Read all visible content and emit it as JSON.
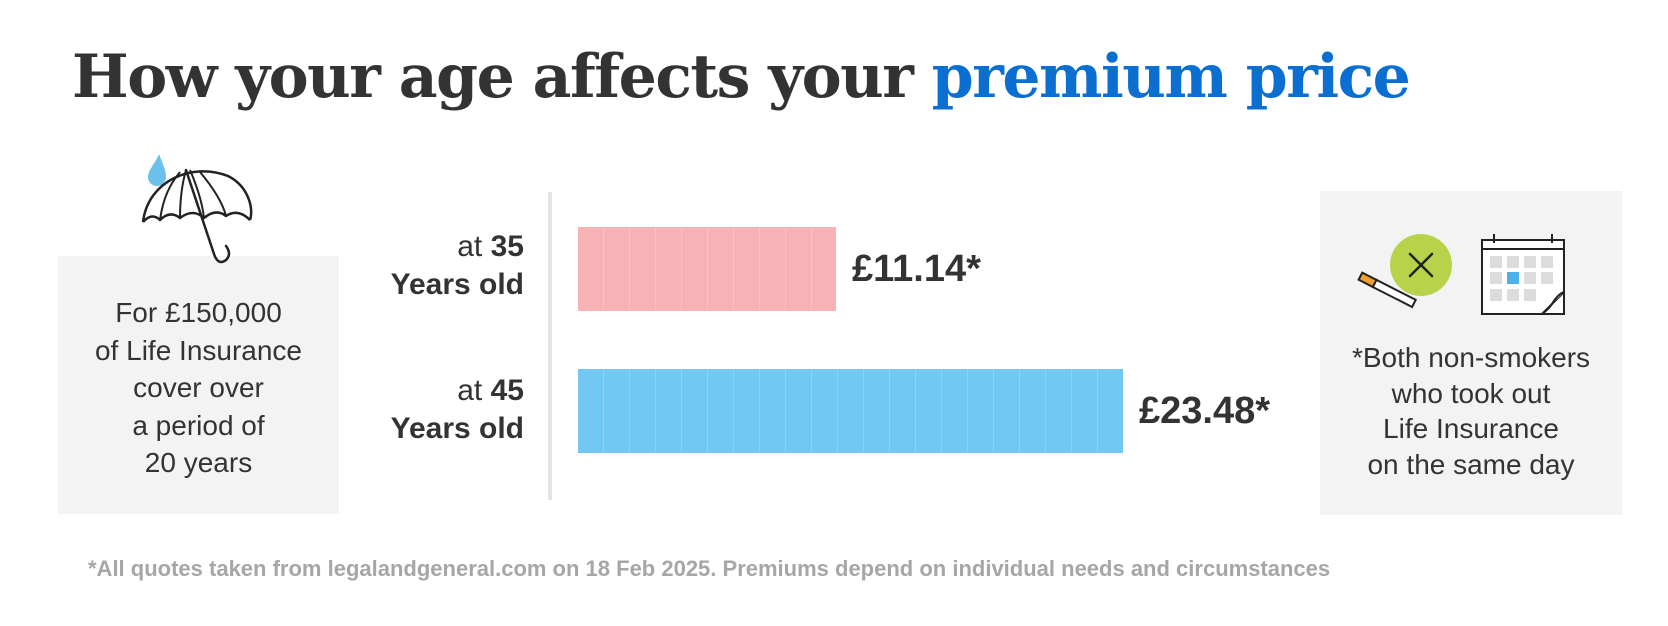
{
  "title": {
    "part1": "How your age affects your",
    "part2": "premium price"
  },
  "cover_box": {
    "lines": [
      "For £150,000",
      "of Life Insurance",
      "cover over",
      "a period of",
      "20 years"
    ],
    "icon": "umbrella-icon"
  },
  "rows": [
    {
      "prefix": "at",
      "age": "35",
      "years": "Years old",
      "value_label": "£11.14*"
    },
    {
      "prefix": "at",
      "age": "45",
      "years": "Years old",
      "value_label": "£23.48*"
    }
  ],
  "note_box": {
    "lines": [
      "*Both non-smokers",
      "who took out",
      "Life Insurance",
      "on the same day"
    ],
    "icons": [
      "cigarette-icon",
      "no-smoking-x-icon",
      "calendar-icon"
    ]
  },
  "footnote": "*All quotes taken from legalandgeneral.com on 18 Feb 2025. Premiums depend on individual needs and circumstances",
  "colors": {
    "title_accent": "#0a6fd1",
    "bar_35": "#f7b2b6",
    "bar_45": "#72c8f3",
    "box_bg": "#f3f3f3",
    "no_smoking_circle": "#b8d34a",
    "raindrop": "#6cc0ec"
  },
  "chart_data": {
    "type": "bar",
    "orientation": "horizontal",
    "categories": [
      "at 35 Years old",
      "at 45 Years old"
    ],
    "values": [
      11.14,
      23.48
    ],
    "data_labels": [
      "£11.14*",
      "£23.48*"
    ],
    "title": "How your age affects your premium price",
    "xlabel": "",
    "ylabel": "",
    "xlim": [
      0,
      25
    ],
    "grid": false,
    "legend": "none"
  }
}
